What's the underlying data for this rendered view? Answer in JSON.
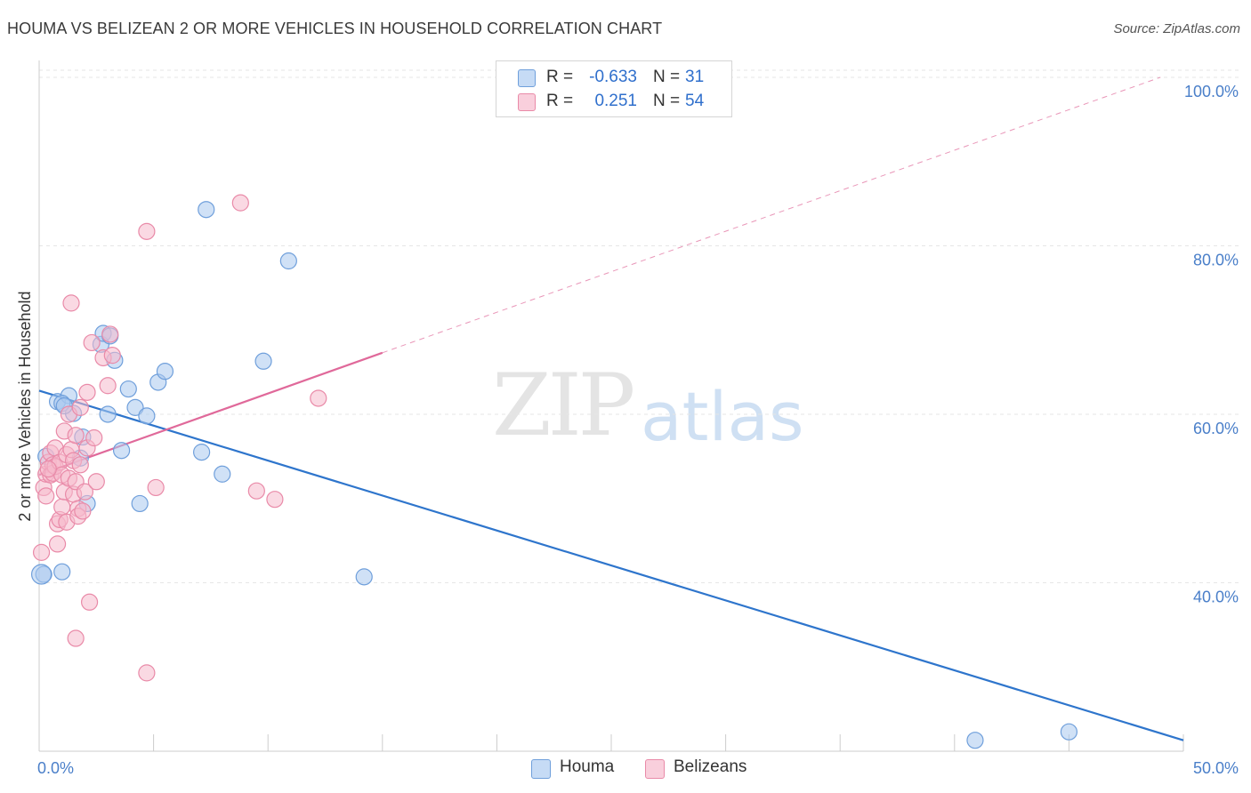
{
  "title": "HOUMA VS BELIZEAN 2 OR MORE VEHICLES IN HOUSEHOLD CORRELATION CHART",
  "source": "Source: ZipAtlas.com",
  "watermark": {
    "zip": "ZIP",
    "atlas": "atlas"
  },
  "colors": {
    "houma": "#a9c8ef",
    "houma_stroke": "#6f9fdb",
    "houma_line": "#2e75cc",
    "belizeans": "#f6b9cc",
    "belizeans_stroke": "#e98aa8",
    "belizeans_line": "#e0699a",
    "grid": "#e6e6e6",
    "tick": "#4a7fc9"
  },
  "legend": {
    "rows": [
      {
        "label": "R =",
        "r": "-0.633",
        "n_label": "N =",
        "n": "31"
      },
      {
        "label": "R =",
        "r": "0.251",
        "n_label": "N =",
        "n": "54"
      }
    ]
  },
  "bottom_legend": [
    "Houma",
    "Belizeans"
  ],
  "chart_data": {
    "type": "scatter",
    "title": "HOUMA VS BELIZEAN 2 OR MORE VEHICLES IN HOUSEHOLD CORRELATION CHART",
    "xlabel": "",
    "ylabel": "2 or more Vehicles in Household",
    "xlim": [
      0,
      50
    ],
    "ylim": [
      20,
      102
    ],
    "x_tick_labels": [
      "0.0%",
      "50.0%"
    ],
    "y_ticks": [
      40,
      60,
      80,
      100
    ],
    "y_tick_labels": [
      "40.0%",
      "60.0%",
      "80.0%",
      "100.0%"
    ],
    "series": [
      {
        "name": "Houma",
        "points": [
          [
            0.2,
            41.0
          ],
          [
            1.0,
            41.3
          ],
          [
            0.8,
            61.5
          ],
          [
            1.3,
            62.2
          ],
          [
            1.0,
            61.3
          ],
          [
            1.5,
            60.1
          ],
          [
            1.9,
            57.3
          ],
          [
            1.8,
            54.8
          ],
          [
            2.1,
            49.4
          ],
          [
            2.7,
            68.3
          ],
          [
            2.8,
            69.6
          ],
          [
            3.1,
            69.3
          ],
          [
            3.3,
            66.4
          ],
          [
            3.0,
            60.0
          ],
          [
            3.6,
            55.7
          ],
          [
            3.9,
            63.0
          ],
          [
            4.2,
            60.8
          ],
          [
            4.7,
            59.8
          ],
          [
            5.2,
            63.8
          ],
          [
            5.5,
            65.1
          ],
          [
            4.4,
            49.4
          ],
          [
            7.1,
            55.5
          ],
          [
            7.3,
            84.3
          ],
          [
            8.0,
            52.9
          ],
          [
            9.8,
            66.3
          ],
          [
            10.9,
            78.2
          ],
          [
            14.2,
            40.7
          ],
          [
            40.9,
            21.3
          ],
          [
            45.0,
            22.3
          ],
          [
            0.3,
            55.0
          ],
          [
            1.1,
            61.0
          ]
        ],
        "trend": {
          "x": [
            0.0,
            50.0
          ],
          "y": [
            62.8,
            21.3
          ],
          "style": "solid"
        }
      },
      {
        "name": "Belizeans",
        "points": [
          [
            0.1,
            43.6
          ],
          [
            0.2,
            51.3
          ],
          [
            0.3,
            50.3
          ],
          [
            0.3,
            52.9
          ],
          [
            0.4,
            54.3
          ],
          [
            0.5,
            52.8
          ],
          [
            0.5,
            55.4
          ],
          [
            0.6,
            54.0
          ],
          [
            0.6,
            53.0
          ],
          [
            0.7,
            56.0
          ],
          [
            0.7,
            53.8
          ],
          [
            0.8,
            44.6
          ],
          [
            0.8,
            47.0
          ],
          [
            0.9,
            47.5
          ],
          [
            0.9,
            54.3
          ],
          [
            1.0,
            52.8
          ],
          [
            1.0,
            49.0
          ],
          [
            1.1,
            58.0
          ],
          [
            1.1,
            50.8
          ],
          [
            1.2,
            55.2
          ],
          [
            1.2,
            47.2
          ],
          [
            1.3,
            60.0
          ],
          [
            1.3,
            52.4
          ],
          [
            1.4,
            73.2
          ],
          [
            1.4,
            55.8
          ],
          [
            1.5,
            54.5
          ],
          [
            1.5,
            50.5
          ],
          [
            1.6,
            52.0
          ],
          [
            1.6,
            57.5
          ],
          [
            1.6,
            33.4
          ],
          [
            1.7,
            48.8
          ],
          [
            1.7,
            47.9
          ],
          [
            1.8,
            54.0
          ],
          [
            1.8,
            60.8
          ],
          [
            1.9,
            48.5
          ],
          [
            2.0,
            50.8
          ],
          [
            2.1,
            62.6
          ],
          [
            2.1,
            56.0
          ],
          [
            2.2,
            37.7
          ],
          [
            2.3,
            68.5
          ],
          [
            2.4,
            57.2
          ],
          [
            2.5,
            52.0
          ],
          [
            2.8,
            66.7
          ],
          [
            3.0,
            63.4
          ],
          [
            3.1,
            69.5
          ],
          [
            3.2,
            67.0
          ],
          [
            4.7,
            81.7
          ],
          [
            4.7,
            29.3
          ],
          [
            5.1,
            51.3
          ],
          [
            8.8,
            85.1
          ],
          [
            9.5,
            50.9
          ],
          [
            10.3,
            49.9
          ],
          [
            12.2,
            61.9
          ],
          [
            0.4,
            53.5
          ]
        ],
        "trend": {
          "x": [
            0.0,
            15.0
          ],
          "y": [
            52.8,
            67.3
          ],
          "style": "solid"
        },
        "trend_extension": {
          "x": [
            15.0,
            49.0
          ],
          "y": [
            67.3,
            100.0
          ],
          "style": "dashed"
        }
      }
    ]
  }
}
